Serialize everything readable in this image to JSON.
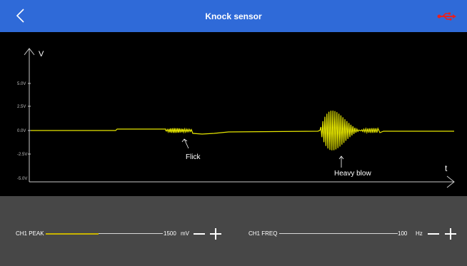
{
  "header": {
    "title": "Knock sensor",
    "back_icon": "chevron-left-icon",
    "status_icon": "usb-icon",
    "background": "#2f6ad8",
    "usb_color": "#e8201f"
  },
  "scope": {
    "y_axis_label": "V",
    "x_axis_label": "t",
    "y_ticks": [
      "5.0V",
      "2.5V",
      "0.0V",
      "-2.5V",
      "-5.0V"
    ],
    "annotations": [
      "Flick",
      "Heavy blow"
    ],
    "trace_color": "#e6e600"
  },
  "controls": {
    "peak": {
      "label": "CH1 PEAK",
      "value": "1500",
      "unit": "mV",
      "fill_fraction": 0.45
    },
    "freq": {
      "label": "CH1 FREQ",
      "value": "100",
      "unit": "Hz",
      "fill_fraction": 0.0
    }
  }
}
